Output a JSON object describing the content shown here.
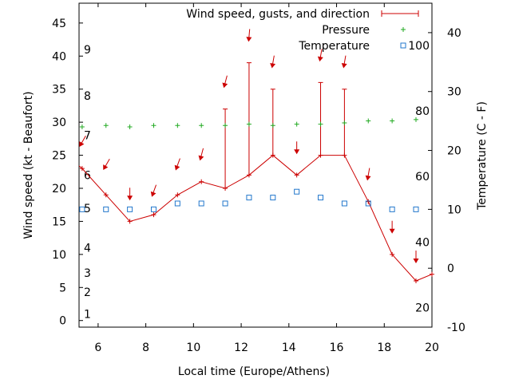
{
  "chart_data": {
    "type": "line",
    "xlabel": "Local time (Europe/Athens)",
    "ylabel": "Wind speed (kt - Beaufort)",
    "y2label": "Temperature (C - F)",
    "xlim": [
      5.2,
      20
    ],
    "ylim": [
      -1,
      48
    ],
    "y2lim": [
      -10,
      45
    ],
    "xticks": [
      6,
      8,
      10,
      12,
      14,
      16,
      18,
      20
    ],
    "yticks": [
      0,
      5,
      10,
      15,
      20,
      25,
      30,
      35,
      40,
      45
    ],
    "y2ticks": [
      -10,
      0,
      10,
      20,
      30,
      40
    ],
    "beaufort_labels": [
      {
        "label": "1",
        "value": 1.0
      },
      {
        "label": "2",
        "value": 4.3
      },
      {
        "label": "3",
        "value": 7.2
      },
      {
        "label": "4",
        "value": 11.0
      },
      {
        "label": "5",
        "value": 17.0
      },
      {
        "label": "6",
        "value": 22.0
      },
      {
        "label": "7",
        "value": 28.0
      },
      {
        "label": "8",
        "value": 34.0
      },
      {
        "label": "9",
        "value": 41.0
      }
    ],
    "fahrenheit_labels": [
      {
        "label": "20",
        "value": -6.7
      },
      {
        "label": "40",
        "value": 4.4
      },
      {
        "label": "60",
        "value": 15.6
      },
      {
        "label": "80",
        "value": 26.7
      },
      {
        "label": "100",
        "value": 37.8
      }
    ],
    "legend": {
      "position": "top-right",
      "entries": [
        "Wind speed, gusts, and direction",
        "Pressure",
        "Temperature"
      ]
    },
    "colors": {
      "wind": "#cc0000",
      "pressure": "#22aa22",
      "temperature": "#2277cc"
    },
    "series": [
      {
        "name": "Wind speed, gusts, and direction",
        "kind": "wind",
        "x": [
          5.0,
          5.33,
          6.33,
          7.33,
          8.33,
          9.33,
          10.33,
          11.33,
          12.33,
          13.33,
          14.33,
          15.33,
          16.33,
          17.33,
          18.33,
          19.33,
          20.0
        ],
        "y": [
          24,
          23,
          19,
          15,
          16,
          19,
          21,
          20,
          22,
          25,
          22,
          25,
          25,
          18,
          10,
          6,
          7
        ],
        "gust_x": [
          11.33,
          12.33,
          13.33,
          15.33,
          16.33
        ],
        "gust_hi": [
          32,
          39,
          35,
          36,
          35
        ],
        "arrow_x": [
          5.33,
          6.33,
          7.33,
          8.33,
          9.33,
          10.33,
          11.33,
          12.33,
          13.33,
          14.33,
          15.33,
          16.33,
          17.33,
          18.33,
          19.33
        ],
        "arrow_y": [
          27.0,
          23.5,
          19.0,
          19.5,
          23.5,
          25.0,
          36.0,
          43.0,
          39.0,
          26.0,
          40.0,
          39.0,
          22.0,
          14.0,
          9.5
        ],
        "arrow_dir_deg": [
          30,
          30,
          0,
          20,
          20,
          15,
          15,
          5,
          10,
          0,
          10,
          10,
          10,
          0,
          0
        ]
      },
      {
        "name": "Pressure",
        "kind": "pressure",
        "x": [
          5.33,
          6.33,
          7.33,
          8.33,
          9.33,
          10.33,
          11.33,
          12.33,
          13.33,
          14.33,
          15.33,
          16.33,
          17.33,
          18.33,
          19.33
        ],
        "y": [
          29.3,
          29.5,
          29.3,
          29.5,
          29.5,
          29.5,
          29.5,
          29.7,
          29.5,
          29.7,
          29.7,
          29.9,
          30.2,
          30.2,
          30.4
        ]
      },
      {
        "name": "Temperature",
        "kind": "temperature",
        "x": [
          5.33,
          6.33,
          7.33,
          8.33,
          9.33,
          10.33,
          11.33,
          12.33,
          13.33,
          14.33,
          15.33,
          16.33,
          17.33,
          18.33,
          19.33
        ],
        "y": [
          10,
          10,
          10,
          10,
          11,
          11,
          11,
          12,
          12,
          13,
          12,
          11,
          11,
          10,
          10
        ]
      }
    ]
  }
}
